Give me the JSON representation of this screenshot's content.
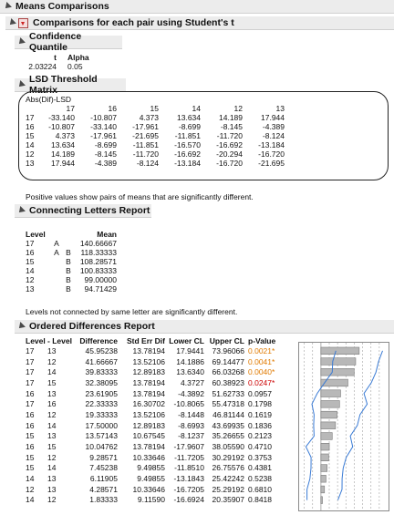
{
  "title": "Means Comparisons",
  "comparison_title": "Comparisons for each pair using Student's t",
  "confidence": {
    "title": "Confidence Quantile",
    "headers": [
      "t",
      "Alpha"
    ],
    "values": [
      "2.03224",
      "0.05"
    ]
  },
  "lsd": {
    "title": "LSD Threshold Matrix",
    "subtitle": "Abs(Dif)-LSD",
    "columns": [
      "17",
      "16",
      "15",
      "14",
      "12",
      "13"
    ],
    "rows": [
      {
        "label": "17",
        "cells": [
          "-33.140",
          "-10.807",
          "4.373",
          "13.634",
          "14.189",
          "17.944"
        ]
      },
      {
        "label": "16",
        "cells": [
          "-10.807",
          "-33.140",
          "-17.961",
          "-8.699",
          "-8.145",
          "-4.389"
        ]
      },
      {
        "label": "15",
        "cells": [
          "4.373",
          "-17.961",
          "-21.695",
          "-11.851",
          "-11.720",
          "-8.124"
        ]
      },
      {
        "label": "14",
        "cells": [
          "13.634",
          "-8.699",
          "-11.851",
          "-16.570",
          "-16.692",
          "-13.184"
        ]
      },
      {
        "label": "12",
        "cells": [
          "14.189",
          "-8.145",
          "-11.720",
          "-16.692",
          "-20.294",
          "-16.720"
        ]
      },
      {
        "label": "13",
        "cells": [
          "17.944",
          "-4.389",
          "-8.124",
          "-13.184",
          "-16.720",
          "-21.695"
        ]
      }
    ],
    "note": "Positive values show pairs of means that are significantly different."
  },
  "letters": {
    "title": "Connecting Letters Report",
    "headers": [
      "Level",
      "",
      "",
      "Mean"
    ],
    "rows": [
      {
        "level": "17",
        "a": "A",
        "b": "",
        "mean": "140.66667"
      },
      {
        "level": "16",
        "a": "A",
        "b": "B",
        "mean": "118.33333"
      },
      {
        "level": "15",
        "a": "",
        "b": "B",
        "mean": "108.28571"
      },
      {
        "level": "14",
        "a": "",
        "b": "B",
        "mean": "100.83333"
      },
      {
        "level": "12",
        "a": "",
        "b": "B",
        "mean": "99.00000"
      },
      {
        "level": "13",
        "a": "",
        "b": "B",
        "mean": "94.71429"
      }
    ],
    "note": "Levels not connected by same letter are significantly different."
  },
  "ordered": {
    "title": "Ordered Differences Report",
    "headers": [
      "Level",
      "- Level",
      "Difference",
      "Std Err Dif",
      "Lower CL",
      "Upper CL",
      "p-Value"
    ],
    "rows": [
      {
        "level": "17",
        "minus": "13",
        "diff": "45.95238",
        "se": "13.78194",
        "lcl": "17.9441",
        "ucl": "73.96066",
        "p": "0.0021*",
        "sig": "orange",
        "d": 45.95238,
        "lo": 17.9441,
        "hi": 73.96066,
        "pv": 0.0021
      },
      {
        "level": "17",
        "minus": "12",
        "diff": "41.66667",
        "se": "13.52106",
        "lcl": "14.1886",
        "ucl": "69.14477",
        "p": "0.0041*",
        "sig": "orange",
        "d": 41.66667,
        "lo": 14.1886,
        "hi": 69.14477,
        "pv": 0.0041
      },
      {
        "level": "17",
        "minus": "14",
        "diff": "39.83333",
        "se": "12.89183",
        "lcl": "13.6340",
        "ucl": "66.03268",
        "p": "0.0040*",
        "sig": "orange",
        "d": 39.83333,
        "lo": 13.634,
        "hi": 66.03268,
        "pv": 0.004
      },
      {
        "level": "17",
        "minus": "15",
        "diff": "32.38095",
        "se": "13.78194",
        "lcl": "4.3727",
        "ucl": "60.38923",
        "p": "0.0247*",
        "sig": "red",
        "d": 32.38095,
        "lo": 4.3727,
        "hi": 60.38923,
        "pv": 0.0247
      },
      {
        "level": "16",
        "minus": "13",
        "diff": "23.61905",
        "se": "13.78194",
        "lcl": "-4.3892",
        "ucl": "51.62733",
        "p": "0.0957",
        "sig": "black",
        "d": 23.61905,
        "lo": -4.3892,
        "hi": 51.62733,
        "pv": 0.0957
      },
      {
        "level": "17",
        "minus": "16",
        "diff": "22.33333",
        "se": "16.30702",
        "lcl": "-10.8065",
        "ucl": "55.47318",
        "p": "0.1798",
        "sig": "black",
        "d": 22.33333,
        "lo": -10.8065,
        "hi": 55.47318,
        "pv": 0.1798
      },
      {
        "level": "16",
        "minus": "12",
        "diff": "19.33333",
        "se": "13.52106",
        "lcl": "-8.1448",
        "ucl": "46.81144",
        "p": "0.1619",
        "sig": "black",
        "d": 19.33333,
        "lo": -8.1448,
        "hi": 46.81144,
        "pv": 0.1619
      },
      {
        "level": "16",
        "minus": "14",
        "diff": "17.50000",
        "se": "12.89183",
        "lcl": "-8.6993",
        "ucl": "43.69935",
        "p": "0.1836",
        "sig": "black",
        "d": 17.5,
        "lo": -8.6993,
        "hi": 43.69935,
        "pv": 0.1836
      },
      {
        "level": "15",
        "minus": "13",
        "diff": "13.57143",
        "se": "10.67545",
        "lcl": "-8.1237",
        "ucl": "35.26655",
        "p": "0.2123",
        "sig": "black",
        "d": 13.57143,
        "lo": -8.1237,
        "hi": 35.26655,
        "pv": 0.2123
      },
      {
        "level": "16",
        "minus": "15",
        "diff": "10.04762",
        "se": "13.78194",
        "lcl": "-17.9607",
        "ucl": "38.05590",
        "p": "0.4710",
        "sig": "black",
        "d": 10.04762,
        "lo": -17.9607,
        "hi": 38.0559,
        "pv": 0.471
      },
      {
        "level": "15",
        "minus": "12",
        "diff": "9.28571",
        "se": "10.33646",
        "lcl": "-11.7205",
        "ucl": "30.29192",
        "p": "0.3753",
        "sig": "black",
        "d": 9.28571,
        "lo": -11.7205,
        "hi": 30.29192,
        "pv": 0.3753
      },
      {
        "level": "15",
        "minus": "14",
        "diff": "7.45238",
        "se": "9.49855",
        "lcl": "-11.8510",
        "ucl": "26.75576",
        "p": "0.4381",
        "sig": "black",
        "d": 7.45238,
        "lo": -11.851,
        "hi": 26.75576,
        "pv": 0.4381
      },
      {
        "level": "14",
        "minus": "13",
        "diff": "6.11905",
        "se": "9.49855",
        "lcl": "-13.1843",
        "ucl": "25.42242",
        "p": "0.5238",
        "sig": "black",
        "d": 6.11905,
        "lo": -13.1843,
        "hi": 25.42242,
        "pv": 0.5238
      },
      {
        "level": "12",
        "minus": "13",
        "diff": "4.28571",
        "se": "10.33646",
        "lcl": "-16.7205",
        "ucl": "25.29192",
        "p": "0.6810",
        "sig": "black",
        "d": 4.28571,
        "lo": -16.7205,
        "hi": 25.29192,
        "pv": 0.681
      },
      {
        "level": "14",
        "minus": "12",
        "diff": "1.83333",
        "se": "9.11590",
        "lcl": "-16.6924",
        "ucl": "20.35907",
        "p": "0.8418",
        "sig": "black",
        "d": 1.83333,
        "lo": -16.6924,
        "hi": 20.35907,
        "pv": 0.8418
      }
    ]
  },
  "colors": {
    "header_bg": "#ececec",
    "bar": "#b8b8b8",
    "ci_line": "#3a7bd5",
    "orange": "#e07a00",
    "red": "#cc0000"
  }
}
